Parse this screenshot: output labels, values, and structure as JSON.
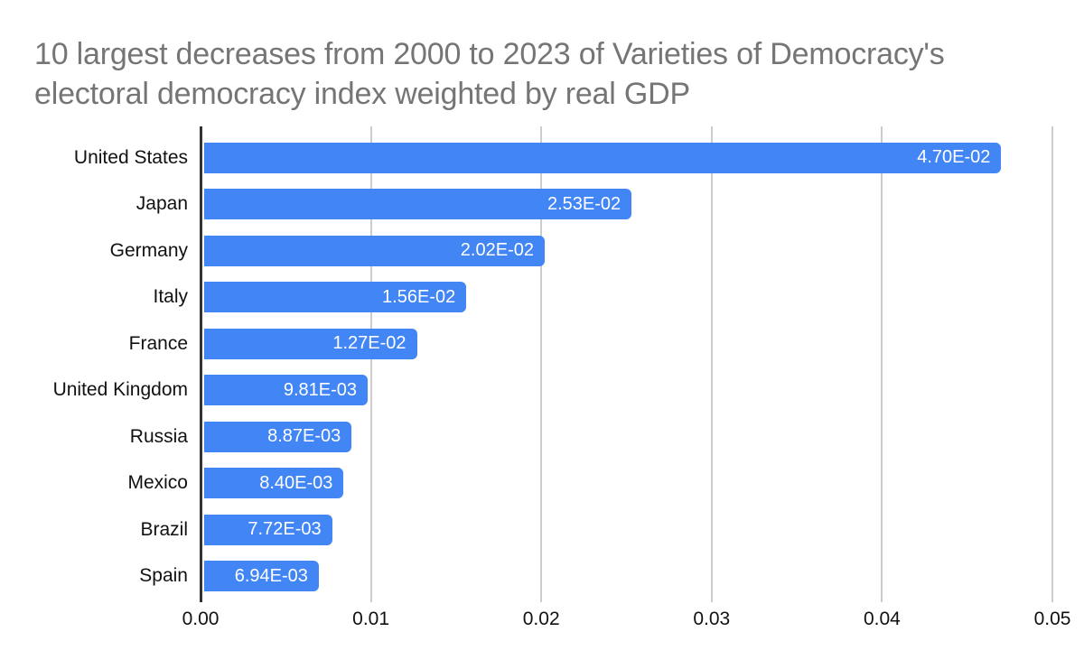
{
  "chart_data": {
    "type": "bar",
    "orientation": "horizontal",
    "title": "10 largest decreases from 2000 to 2023 of Varieties of Democracy's electoral democracy index weighted by real GDP",
    "categories": [
      "United States",
      "Japan",
      "Germany",
      "Italy",
      "France",
      "United Kingdom",
      "Russia",
      "Mexico",
      "Brazil",
      "Spain"
    ],
    "values": [
      0.047,
      0.0253,
      0.0202,
      0.0156,
      0.0127,
      0.00981,
      0.00887,
      0.0084,
      0.00772,
      0.00694
    ],
    "value_labels": [
      "4.70E-02",
      "2.53E-02",
      "2.02E-02",
      "1.56E-02",
      "1.27E-02",
      "9.81E-03",
      "8.87E-03",
      "8.40E-03",
      "7.72E-03",
      "6.94E-03"
    ],
    "x_ticks": [
      0.0,
      0.01,
      0.02,
      0.03,
      0.04,
      0.05
    ],
    "x_tick_labels": [
      "0.00",
      "0.01",
      "0.02",
      "0.03",
      "0.04",
      "0.05"
    ],
    "xlim": [
      0,
      0.05
    ],
    "xlabel": "",
    "ylabel": "",
    "grid": true,
    "legend": false,
    "colors": {
      "bar": "#4285f4",
      "value_label": "#ffffff",
      "title": "#757575",
      "gridline": "#cccccc",
      "axis_line": "#333333",
      "tick_text": "#111111"
    }
  }
}
